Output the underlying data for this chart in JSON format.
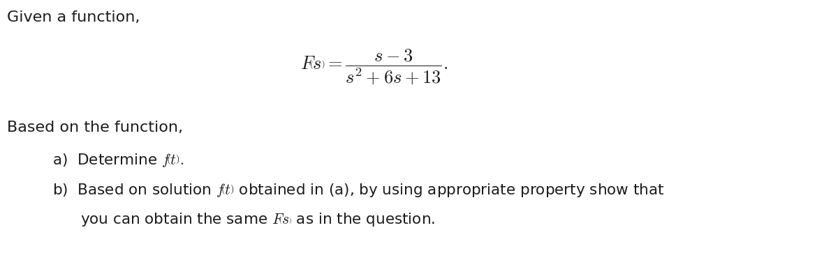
{
  "bg_color": "#ffffff",
  "text_color": "#1c1c1c",
  "fig_width": 12.0,
  "fig_height": 3.73,
  "font_size_text": 16,
  "font_size_formula": 19,
  "font_size_items": 15.5
}
